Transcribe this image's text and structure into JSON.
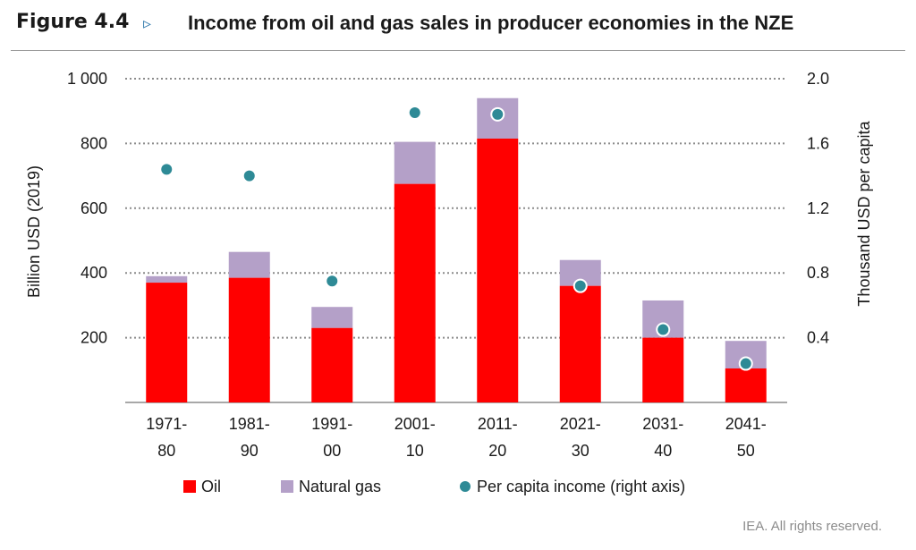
{
  "figure": {
    "label": "Figure 4.4",
    "arrow": "▹",
    "title": "Income from oil and gas sales in producer economies in the NZE",
    "copyright": "IEA. All rights reserved."
  },
  "colors": {
    "oil": "#ff0000",
    "natural_gas": "#b4a0c8",
    "per_capita": "#2e8a96",
    "grid": "#8c8c8c"
  },
  "chart_data": {
    "type": "bar",
    "stacked": true,
    "categories": [
      [
        "1971-",
        "80"
      ],
      [
        "1981-",
        "90"
      ],
      [
        "1991-",
        "00"
      ],
      [
        "2001-",
        "10"
      ],
      [
        "2011-",
        "20"
      ],
      [
        "2021-",
        "30"
      ],
      [
        "2031-",
        "40"
      ],
      [
        "2041-",
        "50"
      ]
    ],
    "series": [
      {
        "name": "Oil",
        "key": "oil",
        "axis": "left",
        "values": [
          370,
          385,
          230,
          675,
          815,
          360,
          200,
          105
        ]
      },
      {
        "name": "Natural gas",
        "key": "natural_gas",
        "axis": "left",
        "values": [
          20,
          80,
          65,
          130,
          125,
          80,
          115,
          85
        ]
      },
      {
        "name": "Per capita income (right axis)",
        "key": "per_capita",
        "axis": "right",
        "type": "scatter",
        "values": [
          1.44,
          1.4,
          0.75,
          1.79,
          1.78,
          0.72,
          0.45,
          0.24
        ]
      }
    ],
    "ylabel": "Billion USD (2019)",
    "ylim": [
      0,
      1000
    ],
    "yticks": [
      200,
      400,
      600,
      800,
      1000
    ],
    "ytick_labels": [
      "200",
      "400",
      "600",
      "800",
      "1 000"
    ],
    "y2label": "Thousand USD per capita",
    "y2lim": [
      0,
      2.0
    ],
    "y2ticks": [
      0.4,
      0.8,
      1.2,
      1.6,
      2.0
    ],
    "y2tick_labels": [
      "0.4",
      "0.8",
      "1.2",
      "1.6",
      "2.0"
    ],
    "grid": "horizontal-dotted",
    "legend_position": "bottom"
  }
}
